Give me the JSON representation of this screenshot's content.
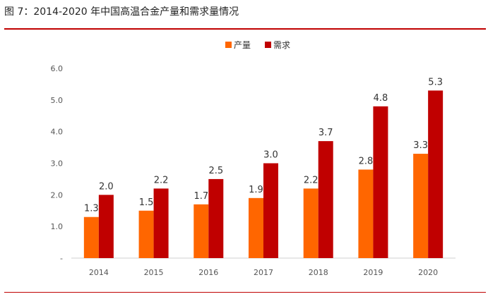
{
  "figure": {
    "title": "图 7：2014-2020 年中国高温合金产量和需求量情况"
  },
  "colors": {
    "production": "#ff6600",
    "demand": "#c00000",
    "rule": "#c00000",
    "axis_text": "#555555",
    "label_text": "#333333"
  },
  "chart_data": {
    "type": "bar",
    "title": "",
    "xlabel": "",
    "ylabel": "",
    "categories": [
      "2014",
      "2015",
      "2016",
      "2017",
      "2018",
      "2019",
      "2020"
    ],
    "series": [
      {
        "name": "产量",
        "values": [
          1.3,
          1.5,
          1.7,
          1.9,
          2.2,
          2.8,
          3.3
        ]
      },
      {
        "name": "需求",
        "values": [
          2.0,
          2.2,
          2.5,
          3.0,
          3.7,
          4.8,
          5.3
        ]
      }
    ],
    "ylim": [
      0,
      6
    ],
    "yticks": [
      "-",
      "1.0",
      "2.0",
      "3.0",
      "4.0",
      "5.0",
      "6.0"
    ],
    "grid": false,
    "legend_position": "top-center",
    "data_labels": true
  }
}
